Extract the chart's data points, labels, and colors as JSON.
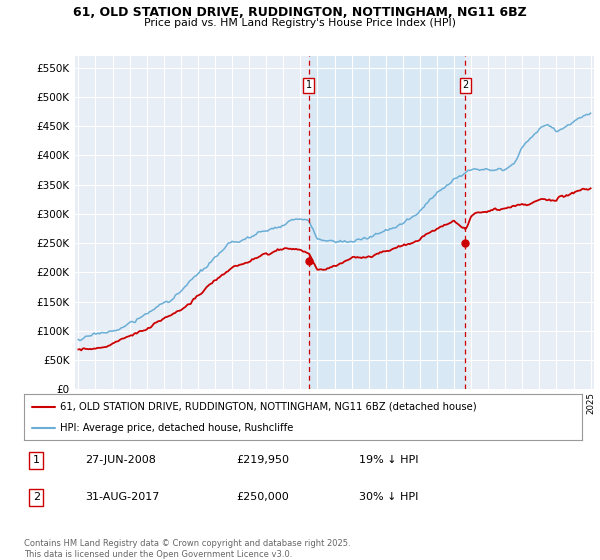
{
  "title": "61, OLD STATION DRIVE, RUDDINGTON, NOTTINGHAM, NG11 6BZ",
  "subtitle": "Price paid vs. HM Land Registry's House Price Index (HPI)",
  "hpi_label": "HPI: Average price, detached house, Rushcliffe",
  "property_label": "61, OLD STATION DRIVE, RUDDINGTON, NOTTINGHAM, NG11 6BZ (detached house)",
  "hpi_color": "#6aaed6",
  "hpi_fill_color": "#d0e4f5",
  "property_color": "#cc0000",
  "vline_color": "#cc0000",
  "background_color": "#ffffff",
  "plot_bg_color": "#e8eef6",
  "grid_color": "#ffffff",
  "year_start": 1995,
  "year_end": 2025,
  "ylim": [
    0,
    570000
  ],
  "yticks": [
    0,
    50000,
    100000,
    150000,
    200000,
    250000,
    300000,
    350000,
    400000,
    450000,
    500000,
    550000
  ],
  "sale1_date": "27-JUN-2008",
  "sale1_price": 219950,
  "sale1_hpi_pct": "19% ↓ HPI",
  "sale1_year": 2008.49,
  "sale2_date": "31-AUG-2017",
  "sale2_price": 250000,
  "sale2_hpi_pct": "30% ↓ HPI",
  "sale2_year": 2017.66,
  "footnote": "Contains HM Land Registry data © Crown copyright and database right 2025.\nThis data is licensed under the Open Government Licence v3.0."
}
